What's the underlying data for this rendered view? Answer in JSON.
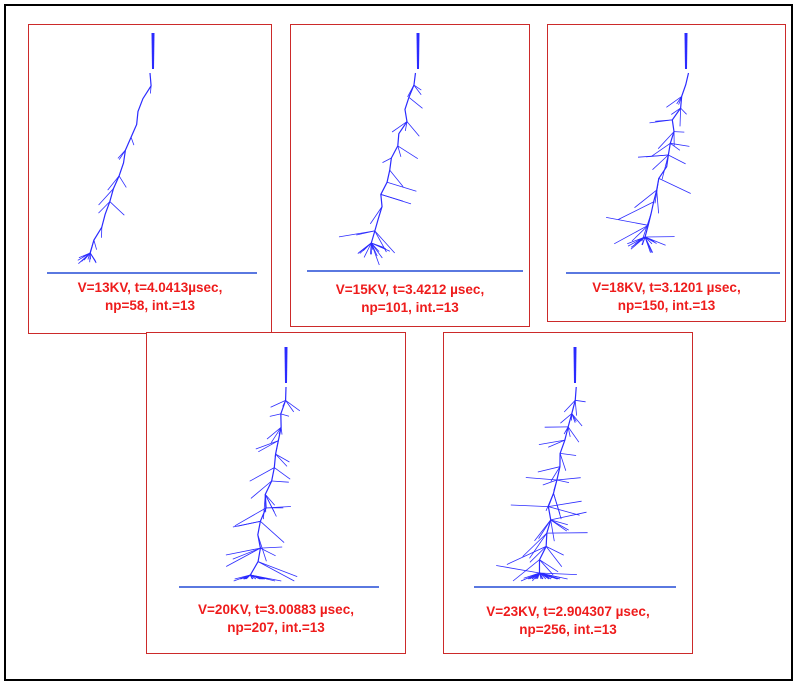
{
  "figure": {
    "panels": [
      {
        "id": "p1",
        "caption_line1": "V=13KV, t=4.0413µsec,",
        "caption_line2": "np=58, int.=13",
        "voltage_kv": 13,
        "time_usec": 4.0413,
        "np": 58,
        "interval": 13
      },
      {
        "id": "p2",
        "caption_line1": "V=15KV, t=3.4212 µsec,",
        "caption_line2": "np=101, int.=13",
        "voltage_kv": 15,
        "time_usec": 3.4212,
        "np": 101,
        "interval": 13
      },
      {
        "id": "p3",
        "caption_line1": "V=18KV, t=3.1201 µsec,",
        "caption_line2": "np=150, int.=13",
        "voltage_kv": 18,
        "time_usec": 3.1201,
        "np": 150,
        "interval": 13
      },
      {
        "id": "p4",
        "caption_line1": "V=20KV, t=3.00883 µsec,",
        "caption_line2": "np=207, int.=13",
        "voltage_kv": 20,
        "time_usec": 3.00883,
        "np": 207,
        "interval": 13
      },
      {
        "id": "p5",
        "caption_line1": "V=23KV, t=2.904307 µsec,",
        "caption_line2": "np=256, int.=13",
        "voltage_kv": 23,
        "time_usec": 2.904307,
        "np": 256,
        "interval": 13
      }
    ],
    "colors": {
      "tree": "#2b2bff",
      "baseline": "#5a78e0",
      "caption": "#ee1c1c",
      "panel_border": "#cc2a2a",
      "frame_border": "#000000"
    }
  }
}
